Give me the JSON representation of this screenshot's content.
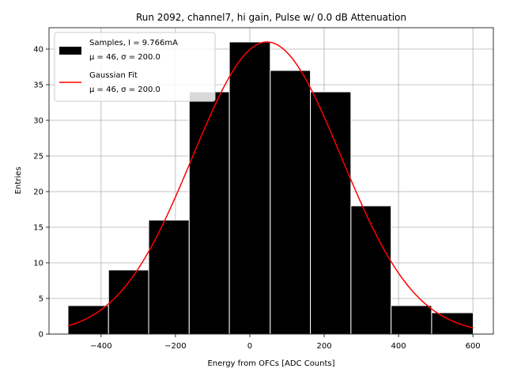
{
  "chart_data": {
    "type": "histogram",
    "title": "Run 2092, channel7, hi gain, Pulse w/ 0.0 dB Attenuation",
    "xlabel": "Energy from OFCs [ADC Counts]",
    "ylabel": "Entries",
    "xlim": [
      -540,
      655
    ],
    "ylim": [
      0,
      43
    ],
    "xticks": [
      -400,
      -200,
      0,
      200,
      400,
      600
    ],
    "xtick_labels": [
      "−400",
      "−200",
      "0",
      "200",
      "400",
      "600"
    ],
    "yticks": [
      0,
      5,
      10,
      15,
      20,
      25,
      30,
      35,
      40
    ],
    "ytick_labels": [
      "0",
      "5",
      "10",
      "15",
      "20",
      "25",
      "30",
      "35",
      "40"
    ],
    "grid": true,
    "bins": [
      -489,
      -380,
      -272,
      -163,
      -55,
      55,
      163,
      272,
      380,
      489,
      601
    ],
    "counts": [
      4,
      9,
      16,
      34,
      41,
      37,
      34,
      18,
      4,
      3
    ],
    "fit": {
      "type": "gaussian",
      "mu": 46,
      "sigma": 200.0,
      "amplitude": 41,
      "x_range": [
        -489,
        601
      ]
    },
    "legend": {
      "position": "upper-left",
      "entries": [
        {
          "name": "Samples, I = 9.766mA",
          "stats": "μ = 46, σ = 200.0",
          "color": "#000000",
          "marker": "patch"
        },
        {
          "name": "Gaussian Fit",
          "stats": "μ = 46, σ = 200.0",
          "color": "#ff0000",
          "marker": "line"
        }
      ]
    },
    "colors": {
      "bar_fill": "#000000",
      "bar_edge": "#ffffff",
      "fit_line": "#ff0000",
      "grid": "#b0b0b0"
    }
  }
}
